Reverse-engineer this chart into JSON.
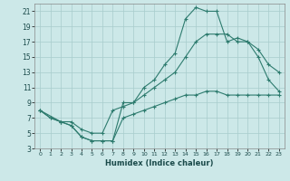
{
  "xlabel": "Humidex (Indice chaleur)",
  "bg_color": "#cce8e8",
  "grid_color": "#a8cccc",
  "line_color": "#2d7b6e",
  "xlim": [
    -0.5,
    23.5
  ],
  "ylim": [
    3,
    22
  ],
  "xticks": [
    0,
    1,
    2,
    3,
    4,
    5,
    6,
    7,
    8,
    9,
    10,
    11,
    12,
    13,
    14,
    15,
    16,
    17,
    18,
    19,
    20,
    21,
    22,
    23
  ],
  "yticks": [
    3,
    5,
    7,
    9,
    11,
    13,
    15,
    17,
    19,
    21
  ],
  "line1_x": [
    0,
    1,
    2,
    3,
    4,
    5,
    6,
    7,
    8,
    9,
    10,
    11,
    12,
    13,
    14,
    15,
    16,
    17,
    18,
    19,
    20,
    21,
    22,
    23
  ],
  "line1_y": [
    8,
    7,
    6.5,
    6,
    4.5,
    4,
    4,
    4,
    9,
    9,
    11,
    12,
    14,
    15.5,
    20,
    21.5,
    21,
    21,
    17,
    17.5,
    17,
    15,
    12,
    10.5
  ],
  "line2_x": [
    0,
    2,
    3,
    4,
    5,
    6,
    7,
    8,
    9,
    10,
    11,
    12,
    13,
    14,
    15,
    16,
    17,
    18,
    19,
    20,
    21,
    22,
    23
  ],
  "line2_y": [
    8,
    6.5,
    6.5,
    5.5,
    5,
    5,
    8,
    8.5,
    9,
    10,
    11,
    12,
    13,
    15,
    17,
    18,
    18,
    18,
    17,
    17,
    16,
    14,
    13
  ],
  "line3_x": [
    0,
    1,
    2,
    3,
    4,
    5,
    6,
    7,
    8,
    9,
    10,
    11,
    12,
    13,
    14,
    15,
    16,
    17,
    18,
    19,
    20,
    21,
    22,
    23
  ],
  "line3_y": [
    8,
    7,
    6.5,
    6,
    4.5,
    4,
    4,
    4,
    7,
    7.5,
    8,
    8.5,
    9,
    9.5,
    10,
    10,
    10.5,
    10.5,
    10,
    10,
    10,
    10,
    10,
    10
  ]
}
